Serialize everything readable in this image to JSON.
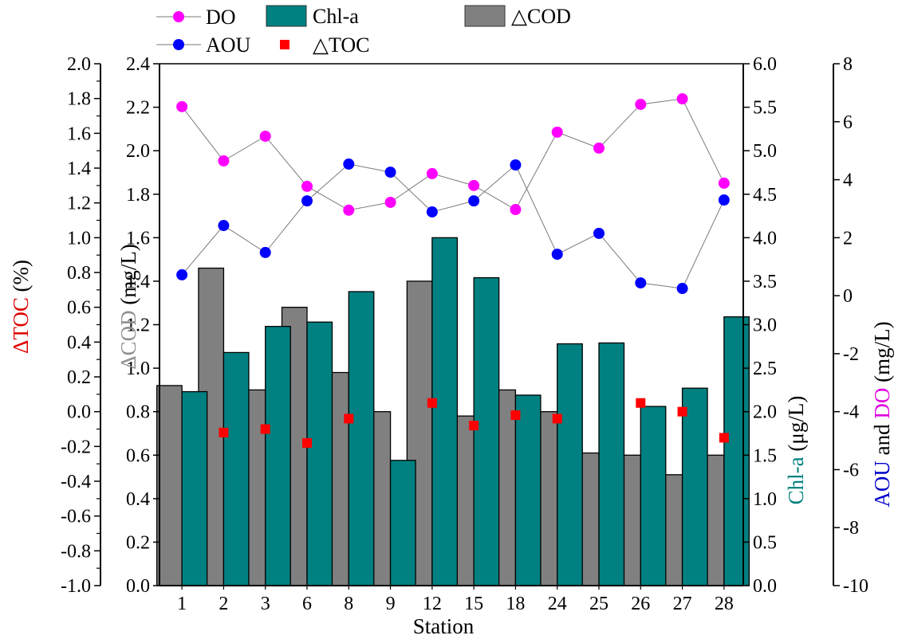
{
  "chart_data": {
    "type": "bar",
    "title": "",
    "xlabel": "Station",
    "categories": [
      "1",
      "2",
      "3",
      "6",
      "8",
      "9",
      "12",
      "15",
      "18",
      "24",
      "25",
      "26",
      "27",
      "28"
    ],
    "series": [
      {
        "name": "△COD",
        "type": "bar",
        "axis": "left-inner",
        "color": "#808080",
        "values": [
          0.92,
          1.46,
          0.9,
          1.28,
          0.98,
          0.8,
          1.4,
          0.78,
          0.9,
          0.8,
          0.61,
          0.6,
          0.51,
          0.6
        ]
      },
      {
        "name": "Chl-a",
        "type": "bar",
        "axis": "right-inner",
        "color": "#008080",
        "values": [
          2.23,
          2.68,
          2.98,
          3.03,
          3.38,
          1.44,
          4.0,
          3.54,
          2.19,
          2.78,
          2.79,
          2.06,
          2.27,
          3.09
        ]
      },
      {
        "name": "DO",
        "type": "line",
        "axis": "right-outer",
        "color": "#ff00ff",
        "values": [
          6.52,
          4.65,
          5.5,
          3.77,
          2.95,
          3.22,
          4.21,
          3.8,
          2.97,
          5.64,
          5.09,
          6.6,
          6.79,
          3.88
        ]
      },
      {
        "name": "AOU",
        "type": "line",
        "axis": "right-outer",
        "color": "#0000ff",
        "values": [
          0.72,
          2.42,
          1.49,
          3.27,
          4.54,
          4.26,
          2.89,
          3.27,
          4.51,
          1.43,
          2.15,
          0.44,
          0.25,
          3.3
        ]
      },
      {
        "name": "△TOC",
        "type": "scatter",
        "axis": "left-outer",
        "color": "#ff0000",
        "values": [
          null,
          -0.12,
          -0.1,
          -0.18,
          -0.04,
          null,
          0.05,
          -0.08,
          -0.02,
          -0.04,
          null,
          0.05,
          0.0,
          -0.15
        ]
      }
    ],
    "axes": {
      "left_outer": {
        "label_parts": [
          {
            "text": "ΔTOC",
            "color": "#e00000"
          },
          {
            "text": " (%)",
            "color": "#000000"
          }
        ],
        "ylim": [
          -1.0,
          2.0
        ],
        "ticks": [
          "-1.0",
          "-0.8",
          "-0.6",
          "-0.4",
          "-0.2",
          "0.0",
          "0.2",
          "0.4",
          "0.6",
          "0.8",
          "1.0",
          "1.2",
          "1.4",
          "1.6",
          "1.8",
          "2.0"
        ]
      },
      "left_inner": {
        "label_parts": [
          {
            "text": "ΔCOD",
            "color": "#909090"
          },
          {
            "text": " (mg/L)",
            "color": "#000000"
          }
        ],
        "ylim": [
          0.0,
          2.4
        ],
        "ticks": [
          "0.0",
          "0.2",
          "0.4",
          "0.6",
          "0.8",
          "1.0",
          "1.2",
          "1.4",
          "1.6",
          "1.8",
          "2.0",
          "2.2",
          "2.4"
        ]
      },
      "right_inner": {
        "label_parts": [
          {
            "text": "Chl-a",
            "color": "#008080"
          },
          {
            "text": " (μg/L)",
            "color": "#000000"
          }
        ],
        "ylim": [
          0.0,
          6.0
        ],
        "ticks": [
          "0.0",
          "0.5",
          "1.0",
          "1.5",
          "2.0",
          "2.5",
          "3.0",
          "3.5",
          "4.0",
          "4.5",
          "5.0",
          "5.5",
          "6.0"
        ]
      },
      "right_outer": {
        "label_parts": [
          {
            "text": "AOU",
            "color": "#0000cc"
          },
          {
            "text": " and ",
            "color": "#000000"
          },
          {
            "text": "DO",
            "color": "#e000e0"
          },
          {
            "text": " (mg/L)",
            "color": "#000000"
          }
        ],
        "ylim": [
          -10,
          8
        ],
        "ticks": [
          "-10",
          "-8",
          "-6",
          "-4",
          "-2",
          "0",
          "2",
          "4",
          "6",
          "8"
        ]
      }
    },
    "legend": {
      "placement": "top",
      "entries": [
        {
          "label": "DO",
          "symbol": "line-circle",
          "color": "#ff00ff"
        },
        {
          "label": "Chl-a",
          "symbol": "box",
          "color": "#008080"
        },
        {
          "label": "△COD",
          "symbol": "box",
          "color": "#808080"
        },
        {
          "label": "AOU",
          "symbol": "line-circle",
          "color": "#0000ff"
        },
        {
          "label": "△TOC",
          "symbol": "square",
          "color": "#ff0000"
        }
      ]
    },
    "grid": false
  }
}
